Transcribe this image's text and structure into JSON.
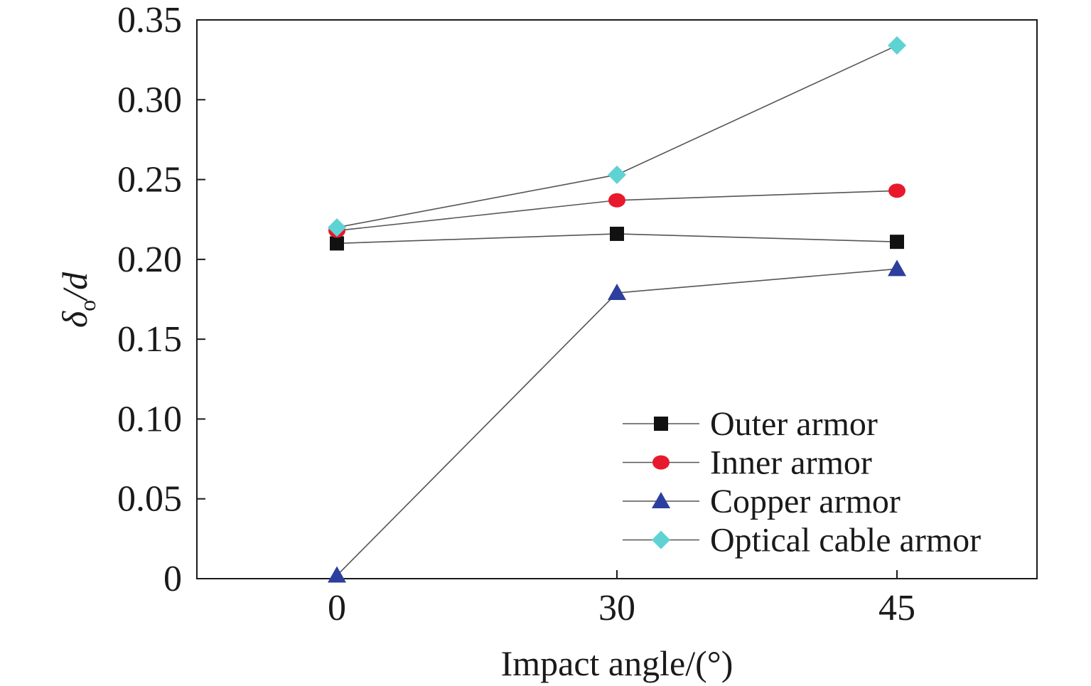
{
  "chart_data": {
    "type": "line",
    "title": "",
    "xlabel": "Impact angle/(°)",
    "ylabel": {
      "main": "δ",
      "subscript": "o",
      "suffix": "/d"
    },
    "x": [
      0,
      30,
      45
    ],
    "x_tick_labels": [
      "0",
      "30",
      "45"
    ],
    "ylim": [
      0,
      0.35
    ],
    "y_ticks": [
      0,
      0.05,
      0.1,
      0.15,
      0.2,
      0.25,
      0.3,
      0.35
    ],
    "y_tick_labels": [
      "0",
      "0.05",
      "0.10",
      "0.15",
      "0.20",
      "0.25",
      "0.30",
      "0.35"
    ],
    "grid": false,
    "legend_position": "bottom-right",
    "series": [
      {
        "name": "Outer armor",
        "values": [
          0.21,
          0.216,
          0.211
        ],
        "marker": "square",
        "color": "#111111"
      },
      {
        "name": "Inner armor",
        "values": [
          0.218,
          0.237,
          0.243
        ],
        "marker": "circle",
        "color": "#e8192c"
      },
      {
        "name": "Copper armor",
        "values": [
          0.002,
          0.179,
          0.194
        ],
        "marker": "triangle",
        "color": "#2c3f9e"
      },
      {
        "name": "Optical cable armor",
        "values": [
          0.22,
          0.253,
          0.334
        ],
        "marker": "diamond",
        "color": "#5fd3d3"
      }
    ]
  }
}
